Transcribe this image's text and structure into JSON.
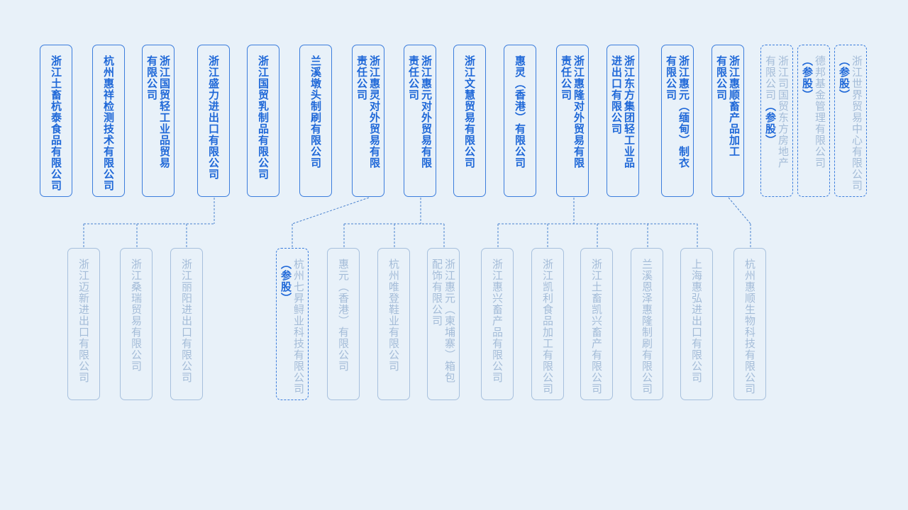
{
  "colors": {
    "background": "#e8f1f9",
    "primary": "#1f68d8",
    "muted": "#a4bcd8"
  },
  "top_row": [
    {
      "lines": [
        {
          "t": "浙江土畜杭泰食品有限公司"
        }
      ],
      "style": "solid"
    },
    {
      "lines": [
        {
          "t": "杭州惠祥检测技术有限公司"
        }
      ],
      "style": "solid"
    },
    {
      "lines": [
        {
          "t": "浙江国贸轻工业品贸易"
        },
        {
          "t": "有限公司"
        }
      ],
      "style": "solid"
    },
    {
      "lines": [
        {
          "t": "浙江盛力进出口有限公司"
        }
      ],
      "style": "solid"
    },
    {
      "lines": [
        {
          "t": "浙江国贸乳制品有限公司"
        }
      ],
      "style": "solid"
    },
    {
      "lines": [
        {
          "t": "兰溪墩头制刷有限公司"
        }
      ],
      "style": "solid"
    },
    {
      "lines": [
        {
          "t": "浙江惠灵对外贸易有限"
        },
        {
          "t": "责任公司"
        }
      ],
      "style": "solid"
    },
    {
      "lines": [
        {
          "t": "浙江惠元对外贸易有限"
        },
        {
          "t": "责任公司"
        }
      ],
      "style": "solid"
    },
    {
      "lines": [
        {
          "t": "浙江文慧贸易有限公司"
        }
      ],
      "style": "solid"
    },
    {
      "lines": [
        {
          "t": "惠灵（香港）有限公司"
        }
      ],
      "style": "solid"
    },
    {
      "lines": [
        {
          "t": "浙江惠隆对外贸易有限"
        },
        {
          "t": "责任公司"
        }
      ],
      "style": "solid"
    },
    {
      "lines": [
        {
          "t": "浙江东方集团轻工业品"
        },
        {
          "t": "进出口有限公司"
        }
      ],
      "style": "solid"
    },
    {
      "lines": [
        {
          "t": "浙江惠元（缅甸）制衣"
        },
        {
          "t": "有限公司"
        }
      ],
      "style": "solid"
    },
    {
      "lines": [
        {
          "t": "浙江惠顺畜产品加工"
        },
        {
          "t": "有限公司"
        }
      ],
      "style": "solid"
    },
    {
      "lines": [
        {
          "t": "浙江司国贸东方房地产"
        },
        {
          "t": "有限公司",
          "a": "（参股）"
        }
      ],
      "style": "dashed"
    },
    {
      "lines": [
        {
          "t": "德邦基金管理有限公司"
        },
        {
          "t": "",
          "a": "（参股）"
        }
      ],
      "style": "dashed"
    },
    {
      "lines": [
        {
          "t": "浙江世界贸易中心有限公司"
        },
        {
          "t": "",
          "a": "（参股）"
        }
      ],
      "style": "dashed"
    }
  ],
  "bottom_row": [
    {
      "lines": [
        {
          "t": "浙江迈新进出口有限公司"
        }
      ],
      "style": "solid"
    },
    {
      "lines": [
        {
          "t": "浙江桑瑞贸易有限公司"
        }
      ],
      "style": "solid"
    },
    {
      "lines": [
        {
          "t": "浙江丽阳进出口有限公司"
        }
      ],
      "style": "solid"
    },
    {
      "lines": [
        {
          "t": "杭州七昇鲟业科技有限公司"
        },
        {
          "t": "",
          "a": "（参股）"
        }
      ],
      "style": "dashed"
    },
    {
      "lines": [
        {
          "t": "惠元（香港）有限公司"
        }
      ],
      "style": "solid"
    },
    {
      "lines": [
        {
          "t": "杭州唯登鞋业有限公司"
        }
      ],
      "style": "solid"
    },
    {
      "lines": [
        {
          "t": "浙江惠元（柬埔寨）箱包"
        },
        {
          "t": "配饰有限公司"
        }
      ],
      "style": "solid"
    },
    {
      "lines": [
        {
          "t": "浙江惠兴畜产品有限公司"
        }
      ],
      "style": "solid"
    },
    {
      "lines": [
        {
          "t": "浙江凯利食品加工有限公司"
        }
      ],
      "style": "solid"
    },
    {
      "lines": [
        {
          "t": "浙江土畜凯兴畜产有限公司"
        }
      ],
      "style": "solid"
    },
    {
      "lines": [
        {
          "t": "兰溪恩泽惠隆制刷有限公司"
        }
      ],
      "style": "solid"
    },
    {
      "lines": [
        {
          "t": "上海惠弘进出口有限公司"
        }
      ],
      "style": "solid"
    },
    {
      "lines": [
        {
          "t": "杭州惠顺生物科技有限公司"
        }
      ],
      "style": "solid"
    }
  ]
}
